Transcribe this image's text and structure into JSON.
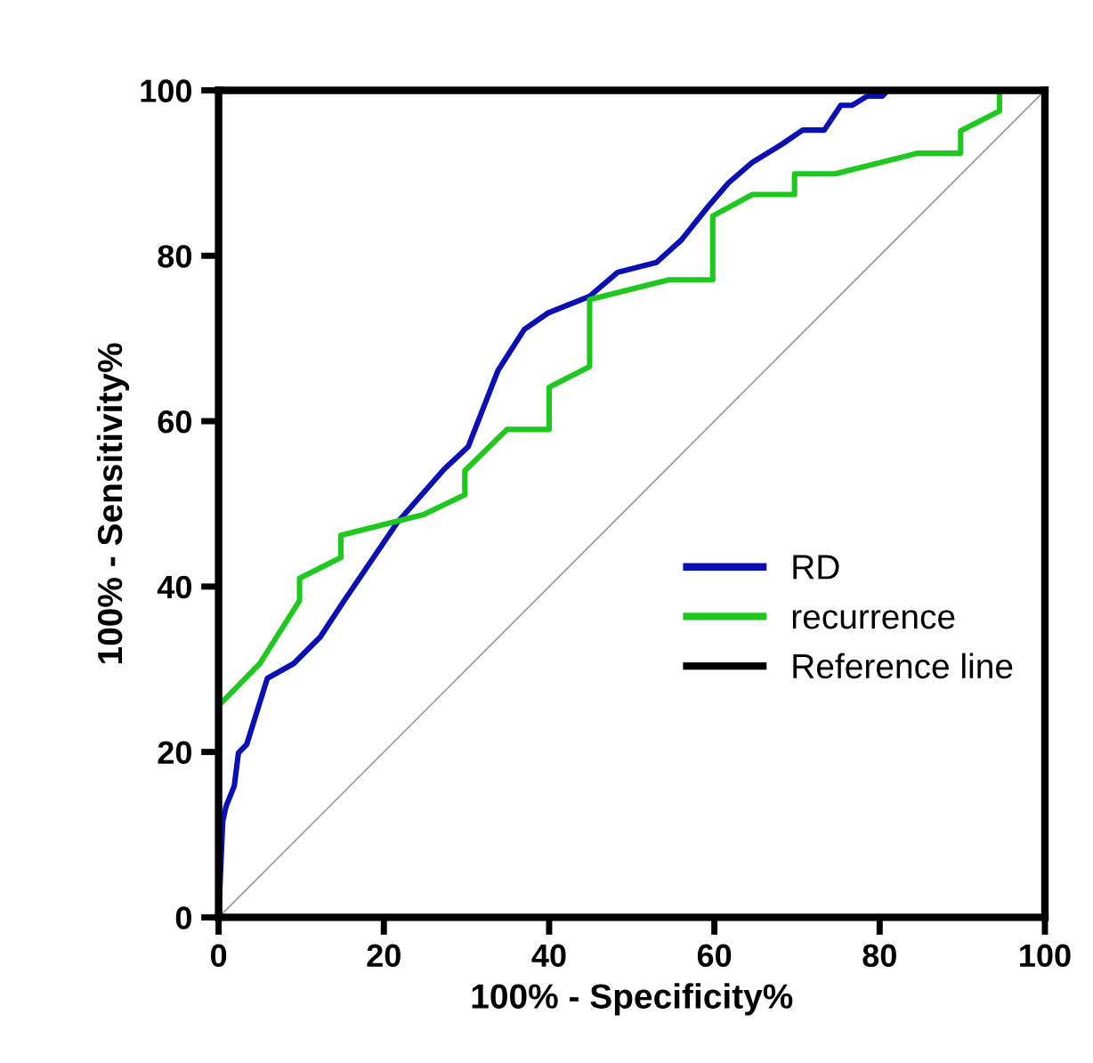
{
  "chart_data": {
    "type": "line",
    "xlabel": "100% - Specificity%",
    "ylabel": "100% - Sensitivity%",
    "xlim": [
      0,
      100
    ],
    "ylim": [
      0,
      100
    ],
    "xticks": [
      0,
      20,
      40,
      60,
      80,
      100
    ],
    "yticks": [
      0,
      20,
      40,
      60,
      80,
      100
    ],
    "grid": false,
    "legend": "right",
    "series": [
      {
        "name": "RD",
        "color": "#0a10b4",
        "x": [
          0,
          0.5,
          0.9,
          1.9,
          2.4,
          3.4,
          5.9,
          9.1,
          12.3,
          15.2,
          21.6,
          27.3,
          30.2,
          33.8,
          37.0,
          39.9,
          44.9,
          48.3,
          53.0,
          56.0,
          59.2,
          61.7,
          64.6,
          68.2,
          70.7,
          73.3,
          75.3,
          76.7,
          78.5,
          80.3,
          81.0,
          100
        ],
        "values": [
          0,
          11.6,
          13.4,
          15.9,
          19.9,
          20.9,
          28.9,
          30.7,
          33.9,
          38.3,
          47.7,
          54.2,
          56.9,
          66.1,
          71.1,
          73.1,
          75.1,
          78.0,
          79.2,
          81.9,
          85.9,
          88.8,
          91.3,
          93.5,
          95.2,
          95.2,
          98.2,
          98.2,
          99.3,
          99.3,
          100,
          100
        ]
      },
      {
        "name": "recurrence",
        "color": "#1ec81e",
        "x": [
          0,
          0,
          5.0,
          9.8,
          9.8,
          14.8,
          14.8,
          24.8,
          29.8,
          29.8,
          34.9,
          40.0,
          40.0,
          44.9,
          44.9,
          54.5,
          59.8,
          59.8,
          64.6,
          69.7,
          69.7,
          74.6,
          84.6,
          89.8,
          89.8,
          94.5,
          94.5,
          100
        ],
        "values": [
          0,
          25.6,
          30.7,
          38.3,
          41.0,
          43.5,
          46.2,
          48.7,
          51.1,
          54.0,
          59.0,
          59.0,
          64.1,
          66.6,
          74.7,
          77.1,
          77.1,
          84.8,
          87.4,
          87.4,
          89.9,
          89.9,
          92.4,
          92.4,
          95.1,
          97.5,
          100,
          100
        ]
      },
      {
        "name": "Reference line",
        "color": "#000000",
        "x": [
          0,
          100
        ],
        "values": [
          0,
          100
        ]
      }
    ]
  }
}
